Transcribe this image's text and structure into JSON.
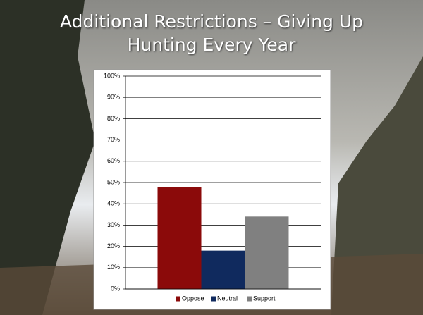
{
  "chart_data": {
    "type": "bar",
    "title": "Additional Restrictions – Giving Up Hunting Every Year",
    "categories": [
      null
    ],
    "series": [
      {
        "name": "Oppose",
        "color": "#8b0a0a",
        "values": [
          48
        ]
      },
      {
        "name": "Neutral",
        "color": "#102a5e",
        "values": [
          18
        ]
      },
      {
        "name": "Support",
        "color": "#808080",
        "values": [
          34
        ]
      }
    ],
    "ylim": [
      0,
      100
    ],
    "yticks": [
      {
        "value": 0,
        "label": "0%"
      },
      {
        "value": 10,
        "label": "10%"
      },
      {
        "value": 20,
        "label": "20%"
      },
      {
        "value": 30,
        "label": "30%"
      },
      {
        "value": 40,
        "label": "40%"
      },
      {
        "value": 50,
        "label": "50%"
      },
      {
        "value": 60,
        "label": "60%"
      },
      {
        "value": 70,
        "label": "70%"
      },
      {
        "value": 80,
        "label": "80%"
      },
      {
        "value": 90,
        "label": "90%"
      },
      {
        "value": 100,
        "label": "100%"
      }
    ],
    "grid": true,
    "legend": "bottom"
  }
}
